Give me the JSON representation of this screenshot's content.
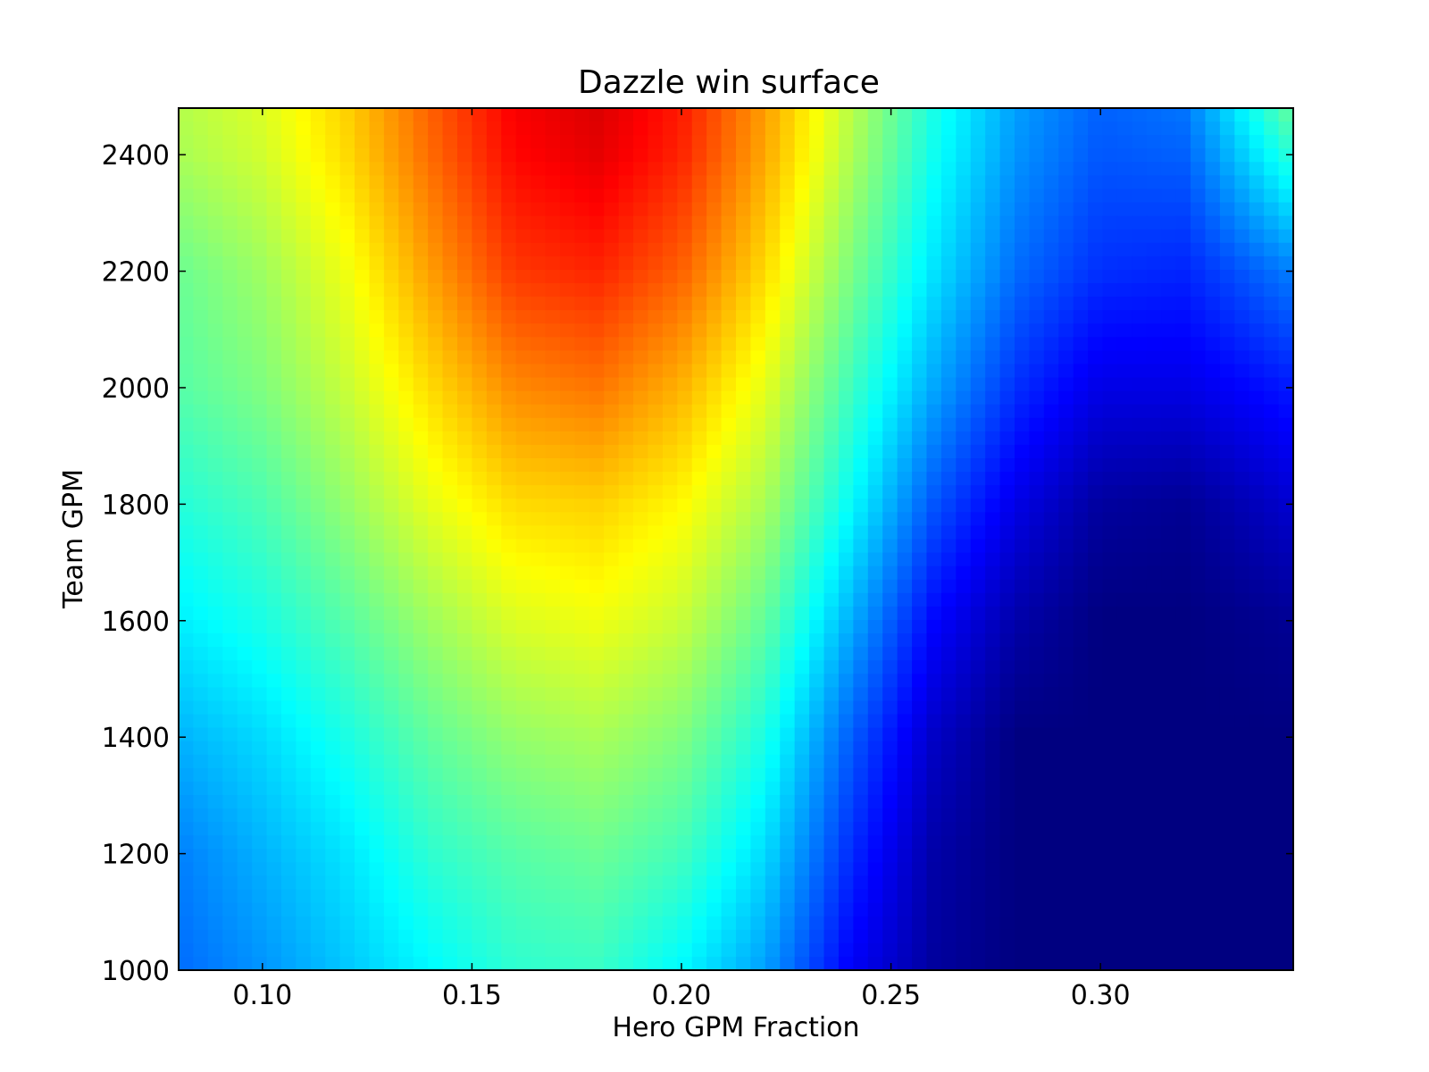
{
  "chart_data": {
    "type": "heatmap",
    "title": "Dazzle win surface",
    "xlabel": "Hero GPM Fraction",
    "ylabel": "Team GPM",
    "xlim": [
      0.08,
      0.346
    ],
    "ylim": [
      1000,
      2480
    ],
    "x_ticks": [
      0.1,
      0.15,
      0.2,
      0.25,
      0.3
    ],
    "x_tick_labels": [
      "0.10",
      "0.15",
      "0.20",
      "0.25",
      "0.30"
    ],
    "y_ticks": [
      1000,
      1200,
      1400,
      1600,
      1800,
      2000,
      2200,
      2400
    ],
    "y_tick_labels": [
      "1000",
      "1200",
      "1400",
      "1600",
      "1800",
      "2000",
      "2200",
      "2400"
    ],
    "colormap": "jet",
    "value_range": [
      0,
      1
    ],
    "grid": false,
    "x": [
      0.08,
      0.1,
      0.12,
      0.14,
      0.16,
      0.18,
      0.2,
      0.22,
      0.24,
      0.26,
      0.28,
      0.3,
      0.32,
      0.346
    ],
    "y": [
      1000,
      1200,
      1400,
      1600,
      1800,
      2000,
      2200,
      2400,
      2480
    ],
    "z": [
      [
        0.23,
        0.27,
        0.32,
        0.37,
        0.42,
        0.43,
        0.37,
        0.28,
        0.12,
        0.03,
        0.0,
        0.0,
        0.0,
        0.0
      ],
      [
        0.25,
        0.3,
        0.35,
        0.42,
        0.46,
        0.48,
        0.44,
        0.34,
        0.17,
        0.04,
        0.0,
        0.0,
        0.0,
        0.0
      ],
      [
        0.3,
        0.34,
        0.4,
        0.47,
        0.52,
        0.54,
        0.5,
        0.4,
        0.22,
        0.07,
        0.0,
        0.0,
        0.0,
        0.0
      ],
      [
        0.36,
        0.4,
        0.46,
        0.53,
        0.59,
        0.61,
        0.57,
        0.47,
        0.3,
        0.13,
        0.04,
        0.0,
        0.0,
        0.02
      ],
      [
        0.41,
        0.45,
        0.52,
        0.6,
        0.66,
        0.67,
        0.63,
        0.54,
        0.38,
        0.21,
        0.1,
        0.03,
        0.02,
        0.08
      ],
      [
        0.46,
        0.5,
        0.57,
        0.66,
        0.74,
        0.76,
        0.7,
        0.6,
        0.44,
        0.29,
        0.17,
        0.1,
        0.1,
        0.15
      ],
      [
        0.48,
        0.53,
        0.61,
        0.72,
        0.82,
        0.84,
        0.78,
        0.66,
        0.5,
        0.35,
        0.23,
        0.17,
        0.16,
        0.25
      ],
      [
        0.54,
        0.58,
        0.66,
        0.77,
        0.87,
        0.9,
        0.84,
        0.71,
        0.55,
        0.39,
        0.27,
        0.21,
        0.22,
        0.42
      ],
      [
        0.55,
        0.59,
        0.67,
        0.78,
        0.88,
        0.91,
        0.85,
        0.72,
        0.56,
        0.4,
        0.28,
        0.22,
        0.24,
        0.48
      ]
    ]
  }
}
